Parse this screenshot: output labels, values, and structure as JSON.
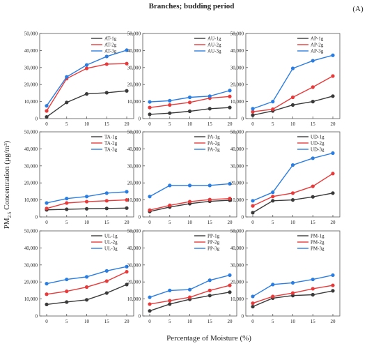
{
  "header": {
    "title": "Branches; budding period",
    "panel_label": "(A)"
  },
  "axes": {
    "ylabel_main": "PM",
    "ylabel_sub": "2.5",
    "ylabel_rest": " Concentration (µg/m³)",
    "xlabel": "Percentage of Moisture (%)"
  },
  "chart_data": [
    {
      "type": "line",
      "x": [
        0,
        5,
        10,
        15,
        20
      ],
      "ylim": [
        0,
        50000
      ],
      "yticks": [
        0,
        10000,
        20000,
        30000,
        40000,
        50000
      ],
      "ytick_labels": [
        "0",
        "10,000",
        "20,000",
        "30,000",
        "40,000",
        "50,000"
      ],
      "legend": "top-right",
      "series": [
        {
          "name": "AT-1g",
          "color": "#3a3a3a",
          "values": [
            1000,
            9500,
            14500,
            15200,
            16300
          ]
        },
        {
          "name": "AT-2g",
          "color": "#e83a3a",
          "values": [
            4500,
            23500,
            29500,
            32000,
            32300
          ]
        },
        {
          "name": "AT-3g",
          "color": "#2a7de1",
          "values": [
            7500,
            24500,
            31500,
            36500,
            40200
          ]
        }
      ]
    },
    {
      "type": "line",
      "x": [
        0,
        5,
        10,
        15,
        20
      ],
      "ylim": [
        0,
        50000
      ],
      "yticks": [
        0,
        10000,
        20000,
        30000,
        40000,
        50000
      ],
      "ytick_labels": [
        "0",
        "10,000",
        "20,000",
        "30,000",
        "40,000",
        "50,000"
      ],
      "legend": "top-right",
      "series": [
        {
          "name": "AU-1g",
          "color": "#3a3a3a",
          "values": [
            2500,
            3200,
            4300,
            5800,
            6500
          ]
        },
        {
          "name": "AU-2g",
          "color": "#e83a3a",
          "values": [
            6500,
            8000,
            9500,
            12000,
            13000
          ]
        },
        {
          "name": "AU-3g",
          "color": "#2a7de1",
          "values": [
            9800,
            10500,
            12500,
            13200,
            16500
          ]
        }
      ]
    },
    {
      "type": "line",
      "x": [
        0,
        5,
        10,
        15,
        20
      ],
      "ylim": [
        0,
        50000
      ],
      "yticks": [
        0,
        10000,
        20000,
        30000,
        40000,
        50000
      ],
      "ytick_labels": [
        "0",
        "10,000",
        "20,000",
        "30,000",
        "40,000",
        "50,000"
      ],
      "legend": "top-right",
      "series": [
        {
          "name": "AP-1g",
          "color": "#3a3a3a",
          "values": [
            2000,
            4500,
            8000,
            10000,
            13200
          ]
        },
        {
          "name": "AP-2g",
          "color": "#e83a3a",
          "values": [
            4000,
            5500,
            12500,
            18500,
            25000
          ]
        },
        {
          "name": "AP-3g",
          "color": "#2a7de1",
          "values": [
            5800,
            10000,
            29500,
            34000,
            37200
          ]
        }
      ]
    },
    {
      "type": "line",
      "x": [
        0,
        5,
        10,
        15,
        20
      ],
      "ylim": [
        0,
        50000
      ],
      "yticks": [
        0,
        10000,
        20000,
        30000,
        40000,
        50000
      ],
      "ytick_labels": [
        "0",
        "10,000",
        "20,000",
        "30,000",
        "40,000",
        "50,000"
      ],
      "legend": "top-right",
      "series": [
        {
          "name": "TA-1g",
          "color": "#3a3a3a",
          "values": [
            4200,
            4500,
            4800,
            5000,
            5200
          ]
        },
        {
          "name": "TA-2g",
          "color": "#e83a3a",
          "values": [
            5000,
            8200,
            9000,
            9500,
            10000
          ]
        },
        {
          "name": "TA-3g",
          "color": "#2a7de1",
          "values": [
            8200,
            10800,
            12000,
            14000,
            14800
          ]
        }
      ]
    },
    {
      "type": "line",
      "x": [
        0,
        5,
        10,
        15,
        20
      ],
      "ylim": [
        0,
        50000
      ],
      "yticks": [
        0,
        10000,
        20000,
        30000,
        40000,
        50000
      ],
      "ytick_labels": [
        "0",
        "10,000",
        "20,000",
        "30,000",
        "40,000",
        "50,000"
      ],
      "legend": "top-right",
      "series": [
        {
          "name": "PA-1g",
          "color": "#3a3a3a",
          "values": [
            3200,
            5800,
            7800,
            9200,
            9800
          ]
        },
        {
          "name": "PA-2g",
          "color": "#e83a3a",
          "values": [
            4000,
            6800,
            9000,
            10200,
            10800
          ]
        },
        {
          "name": "PA-3g",
          "color": "#2a7de1",
          "values": [
            12000,
            18500,
            18500,
            18500,
            19500
          ]
        }
      ]
    },
    {
      "type": "line",
      "x": [
        0,
        5,
        10,
        15,
        20
      ],
      "ylim": [
        0,
        50000
      ],
      "yticks": [
        0,
        10000,
        20000,
        30000,
        40000,
        50000
      ],
      "ytick_labels": [
        "0",
        "10,000",
        "20,000",
        "30,000",
        "40,000",
        "50,000"
      ],
      "legend": "top-right",
      "series": [
        {
          "name": "UD-1g",
          "color": "#3a3a3a",
          "values": [
            2500,
            9500,
            10000,
            11800,
            14000
          ]
        },
        {
          "name": "UD-2g",
          "color": "#e83a3a",
          "values": [
            6500,
            12000,
            14000,
            18000,
            25500
          ]
        },
        {
          "name": "UD-3g",
          "color": "#2a7de1",
          "values": [
            9500,
            14500,
            30500,
            34500,
            37500
          ]
        }
      ]
    },
    {
      "type": "line",
      "x": [
        0,
        5,
        10,
        15,
        20
      ],
      "ylim": [
        0,
        50000
      ],
      "yticks": [
        0,
        10000,
        20000,
        30000,
        40000,
        50000
      ],
      "ytick_labels": [
        "0",
        "10,000",
        "20,000",
        "30,000",
        "40,000",
        "50,000"
      ],
      "legend": "top-right",
      "series": [
        {
          "name": "UL-1g",
          "color": "#3a3a3a",
          "values": [
            6800,
            8200,
            9500,
            13500,
            18500
          ]
        },
        {
          "name": "UL-2g",
          "color": "#e83a3a",
          "values": [
            12800,
            14500,
            17000,
            20500,
            26000
          ]
        },
        {
          "name": "UL-3g",
          "color": "#2a7de1",
          "values": [
            19000,
            21500,
            23000,
            26500,
            29000
          ]
        }
      ]
    },
    {
      "type": "line",
      "x": [
        0,
        5,
        10,
        15,
        20
      ],
      "ylim": [
        0,
        50000
      ],
      "yticks": [
        0,
        10000,
        20000,
        30000,
        40000,
        50000
      ],
      "ytick_labels": [
        "0",
        "10,000",
        "20,000",
        "30,000",
        "40,000",
        "50,000"
      ],
      "legend": "top-right",
      "series": [
        {
          "name": "PP-1g",
          "color": "#3a3a3a",
          "values": [
            3000,
            7000,
            9800,
            12000,
            14000
          ]
        },
        {
          "name": "PP-2g",
          "color": "#e83a3a",
          "values": [
            7000,
            9000,
            11000,
            15000,
            18000
          ]
        },
        {
          "name": "PP-3g",
          "color": "#2a7de1",
          "values": [
            11000,
            15000,
            15500,
            21000,
            24000
          ]
        }
      ]
    },
    {
      "type": "line",
      "x": [
        0,
        5,
        10,
        15,
        20
      ],
      "ylim": [
        0,
        50000
      ],
      "yticks": [
        0,
        10000,
        20000,
        30000,
        40000,
        50000
      ],
      "ytick_labels": [
        "0",
        "10,000",
        "20,000",
        "30,000",
        "40,000",
        "50,000"
      ],
      "legend": "top-right",
      "series": [
        {
          "name": "PM-1g",
          "color": "#3a3a3a",
          "values": [
            5500,
            10500,
            12000,
            12500,
            14800
          ]
        },
        {
          "name": "PM-2g",
          "color": "#e83a3a",
          "values": [
            7500,
            11500,
            13500,
            16000,
            18000
          ]
        },
        {
          "name": "PM-3g",
          "color": "#2a7de1",
          "values": [
            11500,
            18500,
            19500,
            21500,
            24000
          ]
        }
      ]
    }
  ]
}
